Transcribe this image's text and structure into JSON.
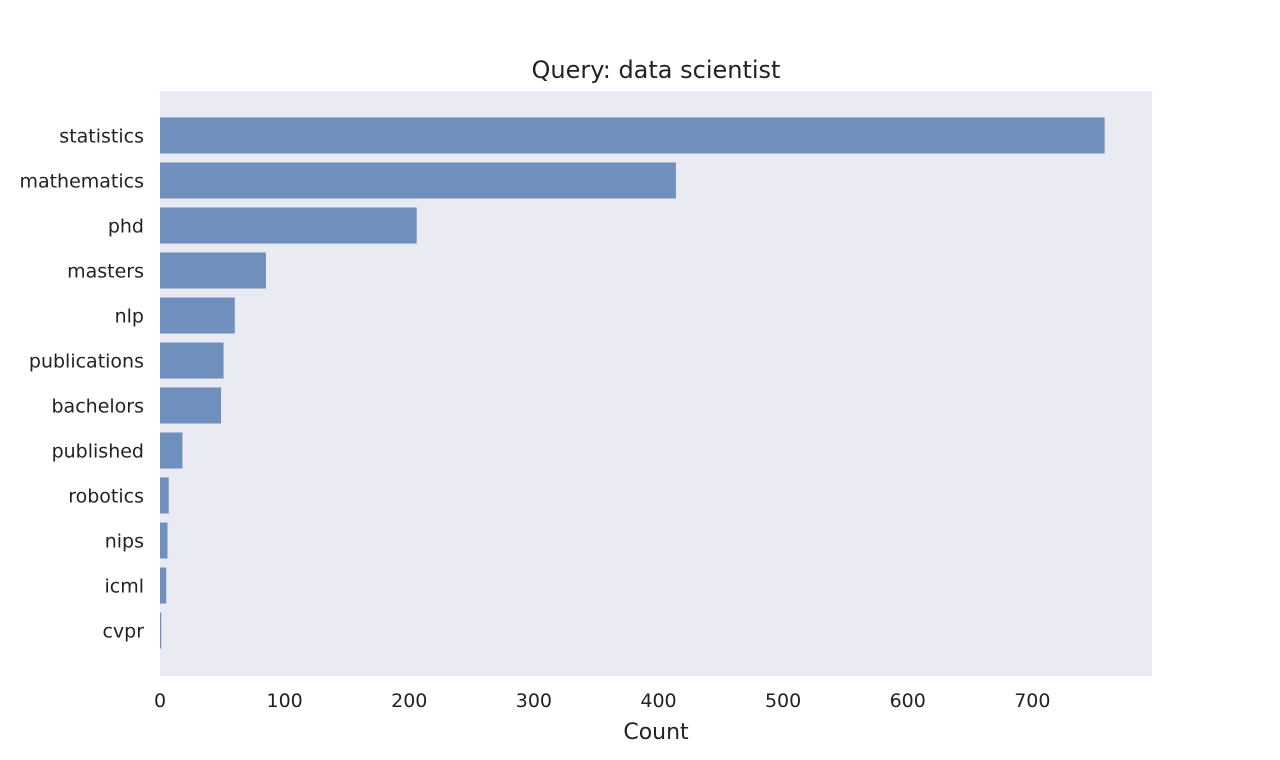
{
  "chart_data": {
    "type": "bar",
    "orientation": "horizontal",
    "title": "Query: data scientist",
    "xlabel": "Count",
    "ylabel": "",
    "categories": [
      "statistics",
      "mathematics",
      "phd",
      "masters",
      "nlp",
      "publications",
      "bachelors",
      "published",
      "robotics",
      "nips",
      "icml",
      "cvpr"
    ],
    "values": [
      758,
      414,
      206,
      85,
      60,
      51,
      49,
      18,
      7,
      6,
      5,
      1
    ],
    "xticks": [
      0,
      100,
      200,
      300,
      400,
      500,
      600,
      700
    ],
    "xlim": [
      0,
      796
    ],
    "grid": false,
    "colors": {
      "bar": "#6f8fbd",
      "plot_background": "#eaeaf2",
      "text": "#222222"
    }
  }
}
